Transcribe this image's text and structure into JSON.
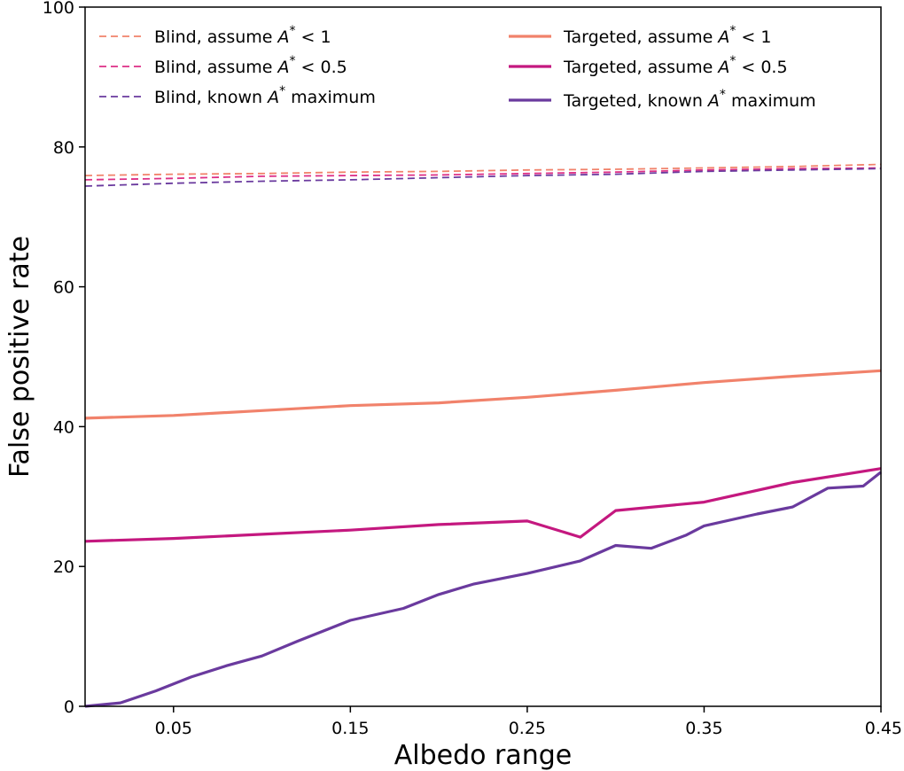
{
  "chart_data": {
    "type": "line",
    "xlabel": "Albedo range",
    "ylabel": "False positive rate",
    "xlim": [
      0.0,
      0.45
    ],
    "ylim": [
      0,
      100
    ],
    "xticks": [
      "0.05",
      "0.15",
      "0.25",
      "0.35",
      "0.45"
    ],
    "yticks": [
      "0",
      "20",
      "40",
      "60",
      "80",
      "100"
    ],
    "grid": false,
    "legend_position": "top",
    "series": [
      {
        "name": "Blind, assume A* < 1",
        "label_prefix": "Blind, assume ",
        "label_symbol": "A",
        "label_sup": "*",
        "label_suffix": " < 1",
        "style": "dashed",
        "color": "#f1826b",
        "points": [
          [
            0.0,
            75.9
          ],
          [
            0.05,
            76.1
          ],
          [
            0.1,
            76.2
          ],
          [
            0.15,
            76.4
          ],
          [
            0.2,
            76.5
          ],
          [
            0.25,
            76.7
          ],
          [
            0.3,
            76.8
          ],
          [
            0.35,
            77.0
          ],
          [
            0.4,
            77.2
          ],
          [
            0.45,
            77.5
          ]
        ]
      },
      {
        "name": "Blind, assume A* < 0.5",
        "label_prefix": "Blind, assume ",
        "label_symbol": "A",
        "label_sup": "*",
        "label_suffix": " < 0.5",
        "style": "dashed",
        "color": "#dd2f86",
        "points": [
          [
            0.0,
            75.3
          ],
          [
            0.05,
            75.5
          ],
          [
            0.1,
            75.8
          ],
          [
            0.15,
            75.9
          ],
          [
            0.2,
            76.0
          ],
          [
            0.25,
            76.2
          ],
          [
            0.3,
            76.4
          ],
          [
            0.35,
            76.7
          ],
          [
            0.4,
            76.9
          ],
          [
            0.45,
            77.0
          ]
        ]
      },
      {
        "name": "Blind, known A* maximum",
        "label_prefix": "Blind, known ",
        "label_symbol": "A",
        "label_sup": "*",
        "label_suffix": " maximum",
        "style": "dashed",
        "color": "#6a3a9e",
        "points": [
          [
            0.0,
            74.4
          ],
          [
            0.05,
            74.8
          ],
          [
            0.1,
            75.1
          ],
          [
            0.15,
            75.3
          ],
          [
            0.2,
            75.6
          ],
          [
            0.25,
            75.9
          ],
          [
            0.3,
            76.1
          ],
          [
            0.35,
            76.5
          ],
          [
            0.4,
            76.7
          ],
          [
            0.45,
            76.9
          ]
        ]
      },
      {
        "name": "Targeted, assume A* < 1",
        "label_prefix": "Targeted, assume ",
        "label_symbol": "A",
        "label_sup": "*",
        "label_suffix": " < 1",
        "style": "solid",
        "color": "#f1826b",
        "points": [
          [
            0.0,
            41.2
          ],
          [
            0.05,
            41.6
          ],
          [
            0.1,
            42.3
          ],
          [
            0.15,
            43.0
          ],
          [
            0.2,
            43.4
          ],
          [
            0.25,
            44.2
          ],
          [
            0.3,
            45.2
          ],
          [
            0.35,
            46.3
          ],
          [
            0.4,
            47.2
          ],
          [
            0.45,
            48.0
          ]
        ]
      },
      {
        "name": "Targeted, assume A* < 0.5",
        "label_prefix": "Targeted, assume ",
        "label_symbol": "A",
        "label_sup": "*",
        "label_suffix": " < 0.5",
        "style": "solid",
        "color": "#c4187f",
        "points": [
          [
            0.0,
            23.6
          ],
          [
            0.05,
            24.0
          ],
          [
            0.1,
            24.6
          ],
          [
            0.15,
            25.2
          ],
          [
            0.2,
            26.0
          ],
          [
            0.25,
            26.5
          ],
          [
            0.28,
            24.2
          ],
          [
            0.3,
            28.0
          ],
          [
            0.35,
            29.2
          ],
          [
            0.4,
            32.0
          ],
          [
            0.45,
            34.0
          ]
        ]
      },
      {
        "name": "Targeted, known A* maximum",
        "label_prefix": "Targeted, known ",
        "label_symbol": "A",
        "label_sup": "*",
        "label_suffix": " maximum",
        "style": "solid",
        "color": "#6a3a9e",
        "points": [
          [
            0.0,
            0.0
          ],
          [
            0.02,
            0.5
          ],
          [
            0.04,
            2.2
          ],
          [
            0.06,
            4.2
          ],
          [
            0.08,
            5.8
          ],
          [
            0.1,
            7.2
          ],
          [
            0.12,
            9.3
          ],
          [
            0.15,
            12.3
          ],
          [
            0.18,
            14.0
          ],
          [
            0.2,
            16.0
          ],
          [
            0.22,
            17.5
          ],
          [
            0.25,
            19.0
          ],
          [
            0.28,
            20.8
          ],
          [
            0.3,
            23.0
          ],
          [
            0.32,
            22.6
          ],
          [
            0.34,
            24.5
          ],
          [
            0.35,
            25.8
          ],
          [
            0.38,
            27.5
          ],
          [
            0.4,
            28.5
          ],
          [
            0.42,
            31.2
          ],
          [
            0.44,
            31.5
          ],
          [
            0.45,
            33.5
          ]
        ]
      }
    ]
  }
}
